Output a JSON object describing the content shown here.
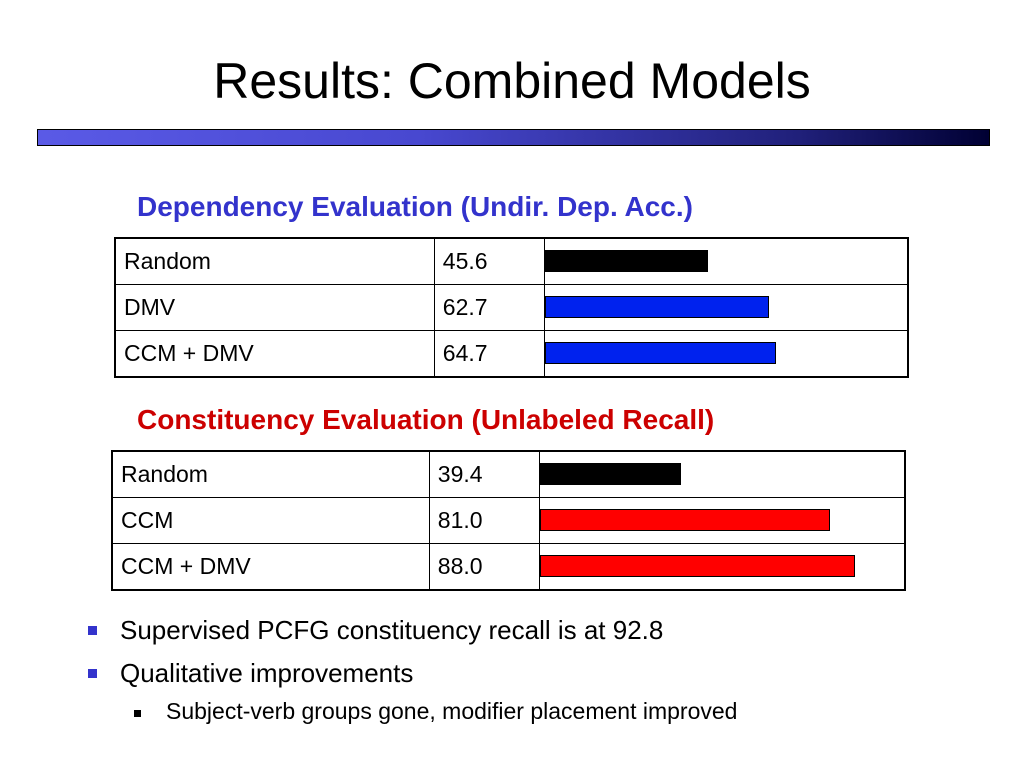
{
  "slide": {
    "title": "Results: Combined Models"
  },
  "dependency": {
    "heading": "Dependency Evaluation (Undir. Dep. Acc.)",
    "heading_color": "#3333cc",
    "rows": [
      {
        "label": "Random",
        "value": "45.6",
        "score": 45.6,
        "color": "#000000"
      },
      {
        "label": "DMV",
        "value": "62.7",
        "score": 62.7,
        "color": "#0022ee"
      },
      {
        "label": "CCM + DMV",
        "value": "64.7",
        "score": 64.7,
        "color": "#0022ee"
      }
    ]
  },
  "constituency": {
    "heading": "Constituency Evaluation (Unlabeled Recall)",
    "heading_color": "#cc0000",
    "rows": [
      {
        "label": "Random",
        "value": "39.4",
        "score": 39.4,
        "color": "#000000"
      },
      {
        "label": "CCM",
        "value": "81.0",
        "score": 81.0,
        "color": "#ff0000"
      },
      {
        "label": "CCM + DMV",
        "value": "88.0",
        "score": 88.0,
        "color": "#ff0000"
      }
    ]
  },
  "bullets": [
    {
      "text": "Supervised PCFG constituency recall is at 92.8"
    },
    {
      "text": "Qualitative improvements"
    }
  ],
  "sub_bullets": [
    {
      "text": "Subject-verb groups gone, modifier placement improved"
    }
  ],
  "colors": {
    "bullet": "#3333cc",
    "title_bar_start": "#5a5ae6",
    "title_bar_end": "#000033"
  }
}
